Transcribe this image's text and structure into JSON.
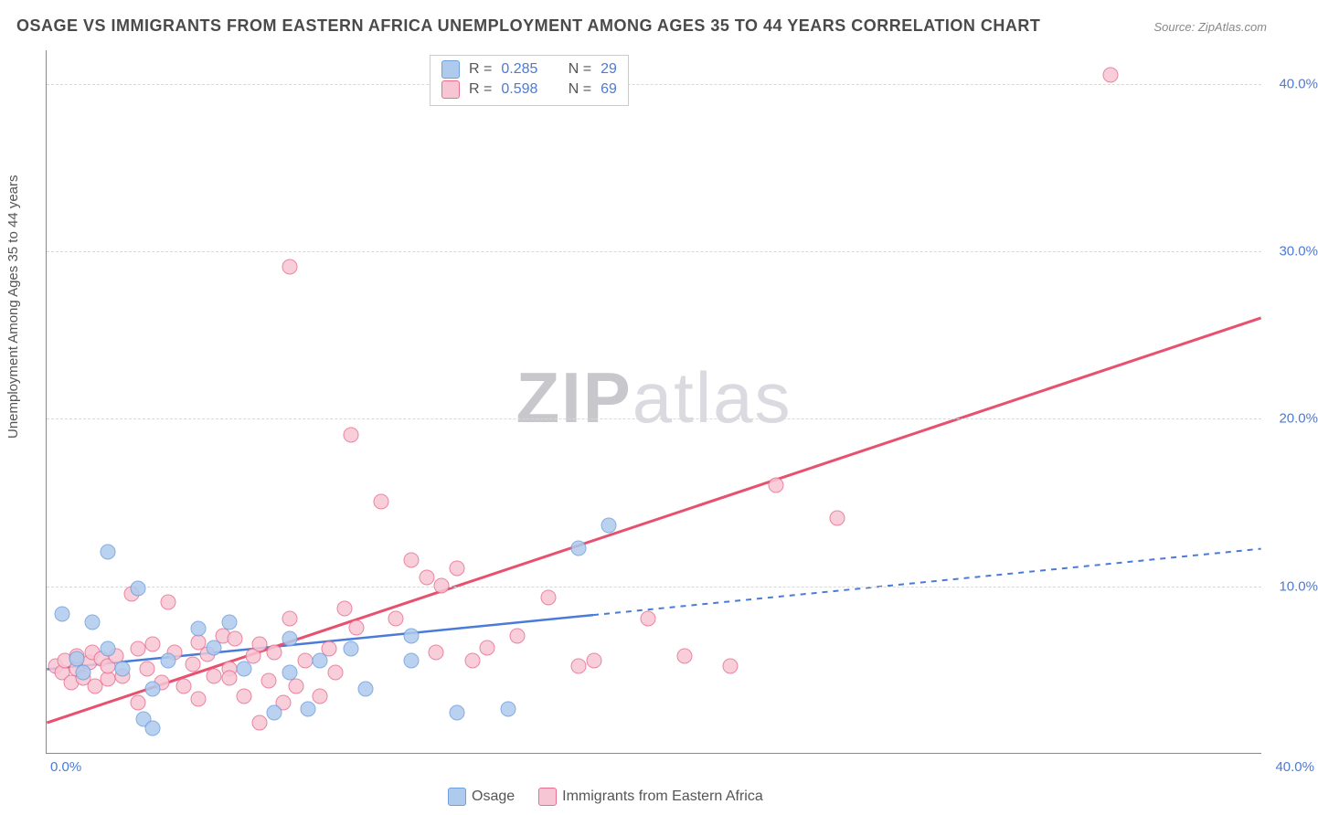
{
  "title": "OSAGE VS IMMIGRANTS FROM EASTERN AFRICA UNEMPLOYMENT AMONG AGES 35 TO 44 YEARS CORRELATION CHART",
  "source": "Source: ZipAtlas.com",
  "yaxis_label": "Unemployment Among Ages 35 to 44 years",
  "watermark": {
    "bold": "ZIP",
    "light": "atlas"
  },
  "chart": {
    "type": "scatter",
    "xlim": [
      0,
      40
    ],
    "ylim": [
      0,
      42
    ],
    "x_ticks": [
      {
        "v": 0,
        "label": "0.0%",
        "pos": "left"
      },
      {
        "v": 40,
        "label": "40.0%",
        "pos": "right"
      }
    ],
    "y_ticks": [
      {
        "v": 10,
        "label": "10.0%"
      },
      {
        "v": 20,
        "label": "20.0%"
      },
      {
        "v": 30,
        "label": "30.0%"
      },
      {
        "v": 40,
        "label": "40.0%"
      }
    ],
    "grid_color": "#d8d8d8",
    "background": "#ffffff",
    "series": [
      {
        "id": "osage",
        "label": "Osage",
        "R": "0.285",
        "N": "29",
        "fill": "#aecbee",
        "stroke": "#6f9fdc",
        "trend": {
          "x1": 0,
          "y1": 5.0,
          "x2": 40,
          "y2": 12.2,
          "solid_until": 18,
          "color": "#4a7bd8",
          "width": 2.5,
          "dash": "6 6"
        },
        "points": [
          [
            0.5,
            8.3
          ],
          [
            1.0,
            5.6
          ],
          [
            1.2,
            4.8
          ],
          [
            1.5,
            7.8
          ],
          [
            2.0,
            12.0
          ],
          [
            2.0,
            6.2
          ],
          [
            2.5,
            5.0
          ],
          [
            3.0,
            9.8
          ],
          [
            3.2,
            2.0
          ],
          [
            3.5,
            3.8
          ],
          [
            3.5,
            1.5
          ],
          [
            4.0,
            5.5
          ],
          [
            5.0,
            7.4
          ],
          [
            5.5,
            6.3
          ],
          [
            6.0,
            7.8
          ],
          [
            6.5,
            5.0
          ],
          [
            7.5,
            2.4
          ],
          [
            8.0,
            6.8
          ],
          [
            8.0,
            4.8
          ],
          [
            8.6,
            2.6
          ],
          [
            9.0,
            5.5
          ],
          [
            10.0,
            6.2
          ],
          [
            10.5,
            3.8
          ],
          [
            12.0,
            7.0
          ],
          [
            13.5,
            2.4
          ],
          [
            15.2,
            2.6
          ],
          [
            17.5,
            12.2
          ],
          [
            18.5,
            13.6
          ],
          [
            12.0,
            5.5
          ]
        ]
      },
      {
        "id": "imm_ea",
        "label": "Immigrants from Eastern Africa",
        "R": "0.598",
        "N": "69",
        "fill": "#f7c6d4",
        "stroke": "#e8708f",
        "trend": {
          "x1": 0,
          "y1": 1.8,
          "x2": 40,
          "y2": 26.0,
          "solid_until": 40,
          "color": "#e8506f",
          "width": 3,
          "dash": ""
        },
        "points": [
          [
            0.3,
            5.2
          ],
          [
            0.5,
            4.8
          ],
          [
            0.6,
            5.5
          ],
          [
            0.8,
            4.2
          ],
          [
            1.0,
            5.0
          ],
          [
            1.0,
            5.8
          ],
          [
            1.2,
            4.5
          ],
          [
            1.4,
            5.4
          ],
          [
            1.5,
            6.0
          ],
          [
            1.6,
            4.0
          ],
          [
            1.8,
            5.6
          ],
          [
            2.0,
            4.4
          ],
          [
            2.0,
            5.2
          ],
          [
            2.3,
            5.8
          ],
          [
            2.5,
            4.6
          ],
          [
            2.8,
            9.5
          ],
          [
            3.0,
            6.2
          ],
          [
            3.0,
            3.0
          ],
          [
            3.3,
            5.0
          ],
          [
            3.5,
            6.5
          ],
          [
            3.8,
            4.2
          ],
          [
            4.0,
            9.0
          ],
          [
            4.2,
            6.0
          ],
          [
            4.5,
            4.0
          ],
          [
            4.8,
            5.3
          ],
          [
            5.0,
            6.6
          ],
          [
            5.0,
            3.2
          ],
          [
            5.3,
            5.9
          ],
          [
            5.5,
            4.6
          ],
          [
            5.8,
            7.0
          ],
          [
            6.0,
            5.0
          ],
          [
            6.2,
            6.8
          ],
          [
            6.5,
            3.4
          ],
          [
            6.8,
            5.8
          ],
          [
            7.0,
            6.5
          ],
          [
            7.0,
            1.8
          ],
          [
            7.3,
            4.3
          ],
          [
            7.5,
            6.0
          ],
          [
            7.8,
            3.0
          ],
          [
            8.0,
            8.0
          ],
          [
            8.0,
            29.0
          ],
          [
            8.2,
            4.0
          ],
          [
            8.5,
            5.5
          ],
          [
            9.0,
            3.4
          ],
          [
            9.3,
            6.2
          ],
          [
            9.5,
            4.8
          ],
          [
            10.0,
            19.0
          ],
          [
            10.2,
            7.5
          ],
          [
            11.0,
            15.0
          ],
          [
            11.5,
            8.0
          ],
          [
            12.0,
            11.5
          ],
          [
            12.5,
            10.5
          ],
          [
            13.0,
            10.0
          ],
          [
            13.5,
            11.0
          ],
          [
            14.0,
            5.5
          ],
          [
            14.5,
            6.3
          ],
          [
            15.5,
            7.0
          ],
          [
            16.5,
            9.3
          ],
          [
            17.5,
            5.2
          ],
          [
            18.0,
            5.5
          ],
          [
            19.8,
            8.0
          ],
          [
            21.0,
            5.8
          ],
          [
            22.5,
            5.2
          ],
          [
            24.0,
            16.0
          ],
          [
            26.0,
            14.0
          ],
          [
            35.0,
            40.5
          ],
          [
            9.8,
            8.6
          ],
          [
            12.8,
            6.0
          ],
          [
            6.0,
            4.5
          ]
        ]
      }
    ]
  },
  "legend_bottom": [
    {
      "label": "Osage",
      "fill": "#aecbee",
      "stroke": "#6f9fdc"
    },
    {
      "label": "Immigrants from Eastern Africa",
      "fill": "#f7c6d4",
      "stroke": "#e8708f"
    }
  ]
}
